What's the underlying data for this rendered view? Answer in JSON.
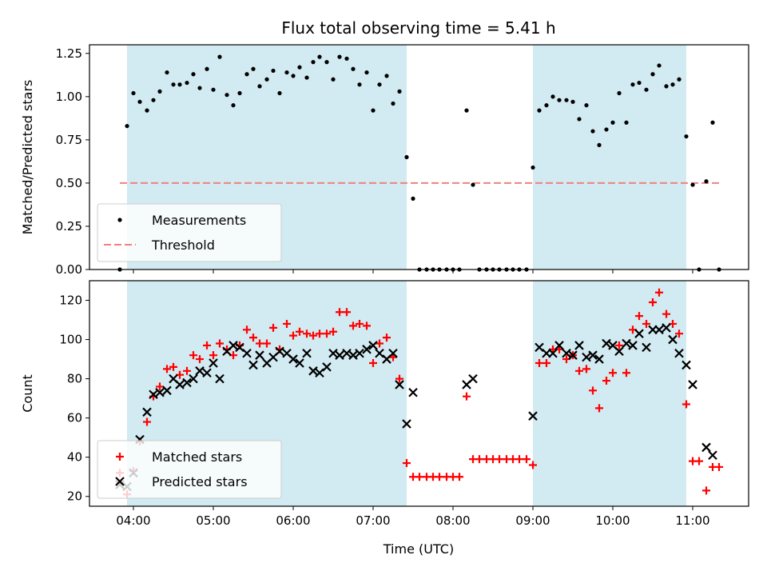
{
  "chart_data": {
    "title": "Flux total observing time = 5.41 h",
    "xlabel": "Time (UTC)",
    "x_unit": "hours (UTC)",
    "xlim": [
      3.45,
      11.7
    ],
    "x_ticks": [
      {
        "value": 4,
        "label": "04:00"
      },
      {
        "value": 5,
        "label": "05:00"
      },
      {
        "value": 6,
        "label": "06:00"
      },
      {
        "value": 7,
        "label": "07:00"
      },
      {
        "value": 8,
        "label": "08:00"
      },
      {
        "value": 9,
        "label": "09:00"
      },
      {
        "value": 10,
        "label": "10:00"
      },
      {
        "value": 11,
        "label": "11:00"
      }
    ],
    "shaded_intervals": [
      [
        3.92,
        7.42
      ],
      [
        9.0,
        10.92
      ]
    ],
    "shade_color": "#add8e6",
    "panels": [
      {
        "type": "scatter",
        "ylabel": "Matched/Predicted stars",
        "ylim": [
          0.0,
          1.3
        ],
        "y_ticks": [
          0.0,
          0.25,
          0.5,
          0.75,
          1.0,
          1.25
        ],
        "y_tick_labels": [
          "0.00",
          "0.25",
          "0.50",
          "0.75",
          "1.00",
          "1.25"
        ],
        "legend": {
          "position": "lower-left",
          "entries": [
            "Measurements",
            "Threshold"
          ]
        },
        "threshold": {
          "name": "Threshold",
          "value": 0.5,
          "x_range": [
            3.83,
            11.33
          ],
          "color": "#f08080",
          "style": "dashed"
        },
        "series": [
          {
            "name": "Measurements",
            "marker": "dot",
            "color": "#000000",
            "x": [
              3.83,
              3.92,
              4.0,
              4.08,
              4.17,
              4.25,
              4.33,
              4.42,
              4.5,
              4.58,
              4.67,
              4.75,
              4.83,
              4.92,
              5.0,
              5.08,
              5.17,
              5.25,
              5.33,
              5.42,
              5.5,
              5.58,
              5.67,
              5.75,
              5.83,
              5.92,
              6.0,
              6.08,
              6.17,
              6.25,
              6.33,
              6.42,
              6.5,
              6.58,
              6.67,
              6.75,
              6.83,
              6.92,
              7.0,
              7.08,
              7.17,
              7.25,
              7.33,
              7.42,
              7.5,
              7.58,
              7.67,
              7.75,
              7.83,
              7.92,
              8.0,
              8.08,
              8.17,
              8.25,
              8.33,
              8.42,
              8.5,
              8.58,
              8.67,
              8.75,
              8.83,
              8.92,
              9.0,
              9.08,
              9.17,
              9.25,
              9.33,
              9.42,
              9.5,
              9.58,
              9.67,
              9.75,
              9.83,
              9.92,
              10.0,
              10.08,
              10.17,
              10.25,
              10.33,
              10.42,
              10.5,
              10.58,
              10.67,
              10.75,
              10.83,
              10.92,
              11.0,
              11.08,
              11.17,
              11.25,
              11.33
            ],
            "y": [
              0.0,
              0.83,
              1.02,
              0.97,
              0.92,
              0.98,
              1.03,
              1.14,
              1.07,
              1.07,
              1.08,
              1.13,
              1.05,
              1.16,
              1.04,
              1.23,
              1.01,
              0.95,
              1.02,
              1.13,
              1.16,
              1.06,
              1.1,
              1.15,
              1.02,
              1.14,
              1.12,
              1.17,
              1.11,
              1.2,
              1.23,
              1.2,
              1.1,
              1.23,
              1.22,
              1.16,
              1.07,
              1.14,
              0.92,
              1.07,
              1.12,
              0.96,
              1.03,
              0.65,
              0.41,
              0.0,
              0.0,
              0.0,
              0.0,
              0.0,
              0.0,
              0.0,
              0.92,
              0.49,
              0.0,
              0.0,
              0.0,
              0.0,
              0.0,
              0.0,
              0.0,
              0.0,
              0.59,
              0.92,
              0.95,
              1.0,
              0.98,
              0.98,
              0.97,
              0.87,
              0.95,
              0.8,
              0.72,
              0.81,
              0.85,
              1.02,
              0.85,
              1.07,
              1.08,
              1.04,
              1.13,
              1.18,
              1.06,
              1.07,
              1.1,
              0.77,
              0.49,
              0.0,
              0.51,
              0.85,
              0.0
            ]
          }
        ]
      },
      {
        "type": "scatter",
        "ylabel": "Count",
        "ylim": [
          15,
          130
        ],
        "y_ticks": [
          20,
          40,
          60,
          80,
          100,
          120
        ],
        "y_tick_labels": [
          "20",
          "40",
          "60",
          "80",
          "100",
          "120"
        ],
        "legend": {
          "position": "lower-left",
          "entries": [
            "Matched stars",
            "Predicted stars"
          ]
        },
        "series": [
          {
            "name": "Matched stars",
            "marker": "plus",
            "color": "#ff0000",
            "x": [
              3.83,
              3.92,
              4.0,
              4.08,
              4.17,
              4.25,
              4.33,
              4.42,
              4.5,
              4.58,
              4.67,
              4.75,
              4.83,
              4.92,
              5.0,
              5.08,
              5.17,
              5.25,
              5.33,
              5.42,
              5.5,
              5.58,
              5.67,
              5.75,
              5.83,
              5.92,
              6.0,
              6.08,
              6.17,
              6.25,
              6.33,
              6.42,
              6.5,
              6.58,
              6.67,
              6.75,
              6.83,
              6.92,
              7.0,
              7.08,
              7.17,
              7.25,
              7.33,
              7.42,
              7.5,
              7.58,
              7.67,
              7.75,
              7.83,
              7.92,
              8.0,
              8.08,
              8.17,
              8.25,
              8.33,
              8.42,
              8.5,
              8.58,
              8.67,
              8.75,
              8.83,
              8.92,
              9.0,
              9.08,
              9.17,
              9.25,
              9.33,
              9.42,
              9.5,
              9.58,
              9.67,
              9.75,
              9.83,
              9.92,
              10.0,
              10.08,
              10.17,
              10.25,
              10.33,
              10.42,
              10.5,
              10.58,
              10.67,
              10.75,
              10.83,
              10.92,
              11.0,
              11.08,
              11.17,
              11.25,
              11.33
            ],
            "y": [
              32,
              21,
              33,
              48,
              58,
              71,
              76,
              85,
              86,
              82,
              84,
              92,
              90,
              97,
              92,
              98,
              95,
              92,
              97,
              105,
              101,
              98,
              98,
              106,
              95,
              108,
              102,
              104,
              103,
              102,
              103,
              103,
              104,
              114,
              114,
              107,
              108,
              107,
              88,
              98,
              101,
              91,
              80,
              37,
              30,
              30,
              30,
              30,
              30,
              30,
              30,
              30,
              71,
              39,
              39,
              39,
              39,
              39,
              39,
              39,
              39,
              39,
              36,
              88,
              88,
              95,
              95,
              90,
              92,
              84,
              85,
              74,
              65,
              79,
              83,
              97,
              83,
              105,
              112,
              108,
              119,
              124,
              113,
              108,
              103,
              67,
              38,
              38,
              23,
              35,
              35
            ]
          },
          {
            "name": "Predicted stars",
            "marker": "x",
            "color": "#000000",
            "x": [
              3.83,
              3.92,
              4.0,
              4.08,
              4.17,
              4.25,
              4.33,
              4.42,
              4.5,
              4.58,
              4.67,
              4.75,
              4.83,
              4.92,
              5.0,
              5.08,
              5.17,
              5.25,
              5.33,
              5.42,
              5.5,
              5.58,
              5.67,
              5.75,
              5.83,
              5.92,
              6.0,
              6.08,
              6.17,
              6.25,
              6.33,
              6.42,
              6.5,
              6.58,
              6.67,
              6.75,
              6.83,
              6.92,
              7.0,
              7.08,
              7.17,
              7.25,
              7.33,
              7.42,
              7.5,
              8.17,
              8.25,
              9.0,
              9.08,
              9.17,
              9.25,
              9.33,
              9.42,
              9.5,
              9.58,
              9.67,
              9.75,
              9.83,
              9.92,
              10.0,
              10.08,
              10.17,
              10.25,
              10.33,
              10.42,
              10.5,
              10.58,
              10.67,
              10.75,
              10.83,
              10.92,
              11.0,
              11.17,
              11.25
            ],
            "y": [
              26,
              25,
              32,
              49,
              63,
              72,
              73,
              74,
              80,
              77,
              78,
              80,
              84,
              83,
              88,
              80,
              94,
              97,
              96,
              93,
              87,
              92,
              88,
              91,
              94,
              93,
              90,
              88,
              93,
              84,
              83,
              86,
              93,
              92,
              93,
              92,
              93,
              95,
              97,
              93,
              90,
              93,
              77,
              57,
              73,
              77,
              80,
              61,
              96,
              93,
              93,
              97,
              93,
              92,
              97,
              91,
              92,
              90,
              98,
              97,
              94,
              98,
              97,
              103,
              96,
              105,
              105,
              106,
              100,
              93,
              87,
              77,
              45,
              41
            ]
          }
        ]
      }
    ]
  }
}
